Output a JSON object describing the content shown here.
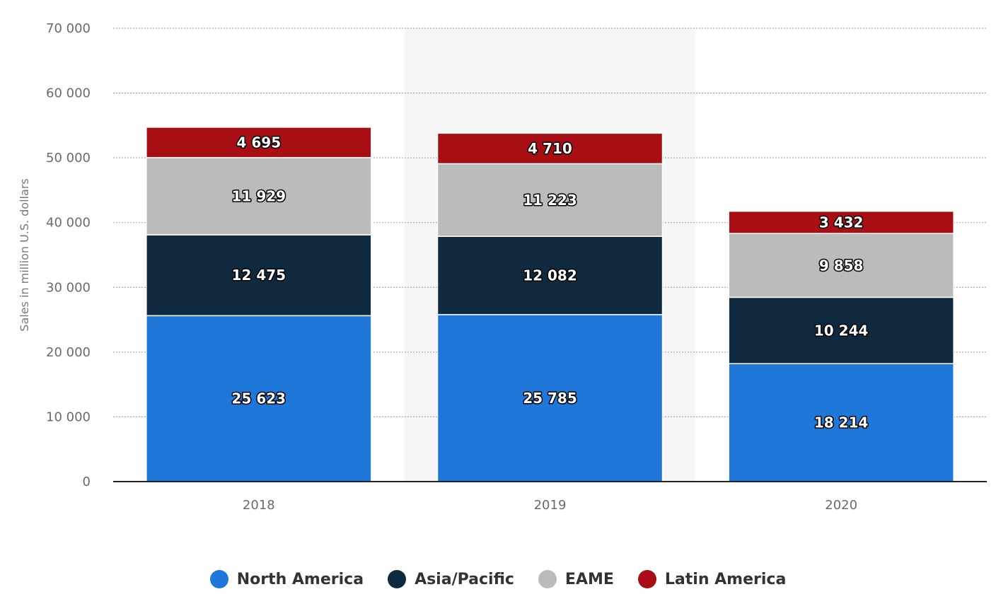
{
  "chart_data": {
    "type": "bar",
    "stacked": true,
    "categories": [
      "2018",
      "2019",
      "2020"
    ],
    "series": [
      {
        "name": "North America",
        "color": "#1f77d9",
        "values": [
          25623,
          25785,
          18214
        ],
        "labels": [
          "25 623",
          "25 785",
          "18 214"
        ]
      },
      {
        "name": "Asia/Pacific",
        "color": "#0f2a3f",
        "values": [
          12475,
          12082,
          10244
        ],
        "labels": [
          "12 475",
          "12 082",
          "10 244"
        ]
      },
      {
        "name": "EAME",
        "color": "#bbbbbb",
        "values": [
          11929,
          11223,
          9858
        ],
        "labels": [
          "11 929",
          "11 223",
          "9 858"
        ]
      },
      {
        "name": "Latin America",
        "color": "#a80f15",
        "values": [
          4695,
          4710,
          3432
        ],
        "labels": [
          "4 695",
          "4 710",
          "3 432"
        ]
      }
    ],
    "ylabel": "Sales in million U.S. dollars",
    "xlabel": "",
    "ylim": [
      0,
      70000
    ],
    "yticks": [
      0,
      10000,
      20000,
      30000,
      40000,
      50000,
      60000,
      70000
    ],
    "ytick_labels": [
      "0",
      "10 000",
      "20 000",
      "30 000",
      "40 000",
      "50 000",
      "60 000",
      "70 000"
    ],
    "highlighted_category": "2019",
    "grid": true,
    "legend_position": "bottom"
  }
}
